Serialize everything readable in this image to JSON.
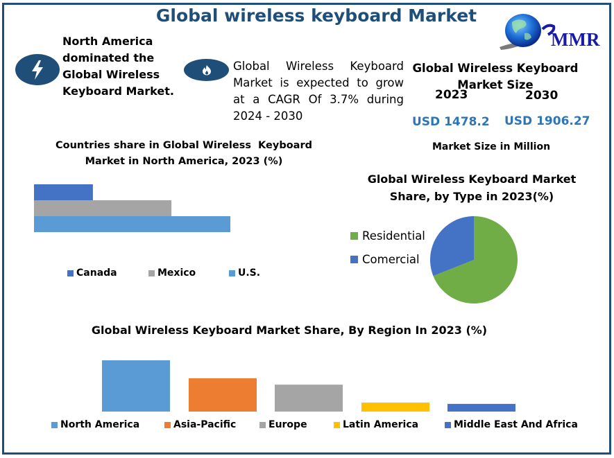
{
  "header": {
    "title": "Global wireless keyboard Market",
    "logo_text": "MMR"
  },
  "highlights": [
    {
      "icon": "lightning-icon",
      "text_lines": [
        "North America",
        "dominated the",
        "Global Wireless",
        "Keyboard Market."
      ]
    },
    {
      "icon": "fire-icon",
      "text": "Global Wireless Keyboard Market is expected to grow at a CAGR Of 3.7% during 2024 - 2030"
    }
  ],
  "market_size": {
    "title_line1": "Global Wireless Keyboard",
    "title_line2": "Market Size",
    "year_start": "2023",
    "year_end": "2030",
    "value_start": "USD 1478.2",
    "value_end": "USD 1906.27",
    "footnote": "Market Size in Million"
  },
  "colors": {
    "brand": "#1f4e79",
    "value": "#2e75b6"
  },
  "chart_data": [
    {
      "type": "bar",
      "orientation": "horizontal",
      "title": "Countries share in Global Wireless  Keyboard Market in North America, 2023 (%)",
      "title_line1": "Countries share in Global Wireless  Keyboard",
      "title_line2": "Market in North America, 2023 (%)",
      "categories": [
        "Canada",
        "Mexico",
        "U.S."
      ],
      "values": [
        15,
        35,
        50
      ],
      "colors": [
        "#4472c4",
        "#a5a5a5",
        "#5b9bd5"
      ],
      "xlim": [
        0,
        50
      ],
      "grid": false,
      "legend": "bottom"
    },
    {
      "type": "pie",
      "title": "Global Wireless Keyboard Market Share, by Type in 2023(%)",
      "title_line1": "Global Wireless Keyboard Market",
      "title_line2": "Share, by Type in 2023(%)",
      "categories": [
        "Residential",
        "Comercial"
      ],
      "values": [
        69,
        31
      ],
      "colors": [
        "#70ad47",
        "#4472c4"
      ],
      "legend": "left"
    },
    {
      "type": "bar",
      "title": "Global Wireless Keyboard Market Share, By Region In 2023 (%)",
      "categories": [
        "North America",
        "Asia-Pacific",
        "Europe",
        "Latin America",
        "Middle East And Africa"
      ],
      "values": [
        40,
        26,
        21,
        7,
        6
      ],
      "colors": [
        "#5b9bd5",
        "#ed7d31",
        "#a5a5a5",
        "#ffc000",
        "#4472c4"
      ],
      "ylim": [
        0,
        40
      ],
      "grid": false,
      "legend": "bottom"
    }
  ]
}
